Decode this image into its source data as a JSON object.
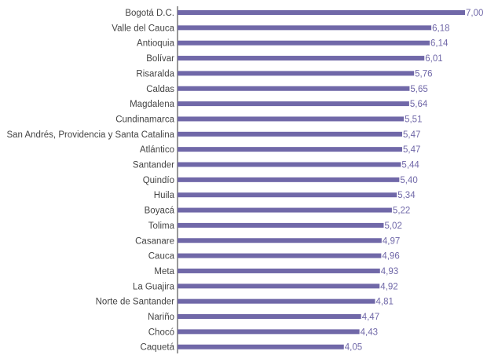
{
  "chart_data": {
    "type": "bar",
    "orientation": "horizontal",
    "title": "",
    "xlabel": "",
    "ylabel": "",
    "xlim": [
      0,
      7
    ],
    "grid": false,
    "bar_color": "#7068a8",
    "categories": [
      "Bogotá D.C.",
      "Valle del Cauca",
      "Antioquia",
      "Bolívar",
      "Risaralda",
      "Caldas",
      "Magdalena",
      "Cundinamarca",
      "San Andrés, Providencia y Santa Catalina",
      "Atlántico",
      "Santander",
      "Quindío",
      "Huila",
      "Boyacá",
      "Tolima",
      "Casanare",
      "Cauca",
      "Meta",
      "La Guajira",
      "Norte de Santander",
      "Nariño",
      "Chocó",
      "Caquetá"
    ],
    "values": [
      7.0,
      6.18,
      6.14,
      6.01,
      5.76,
      5.65,
      5.64,
      5.51,
      5.47,
      5.47,
      5.44,
      5.4,
      5.34,
      5.22,
      5.02,
      4.97,
      4.96,
      4.93,
      4.92,
      4.81,
      4.47,
      4.43,
      4.05
    ],
    "value_labels": [
      "7,00",
      "6,18",
      "6,14",
      "6,01",
      "5,76",
      "5,65",
      "5,64",
      "5,51",
      "5,47",
      "5,47",
      "5,44",
      "5,40",
      "5,34",
      "5,22",
      "5,02",
      "4,97",
      "4,96",
      "4,93",
      "4,92",
      "4,81",
      "4,47",
      "4,43",
      "4,05"
    ]
  }
}
